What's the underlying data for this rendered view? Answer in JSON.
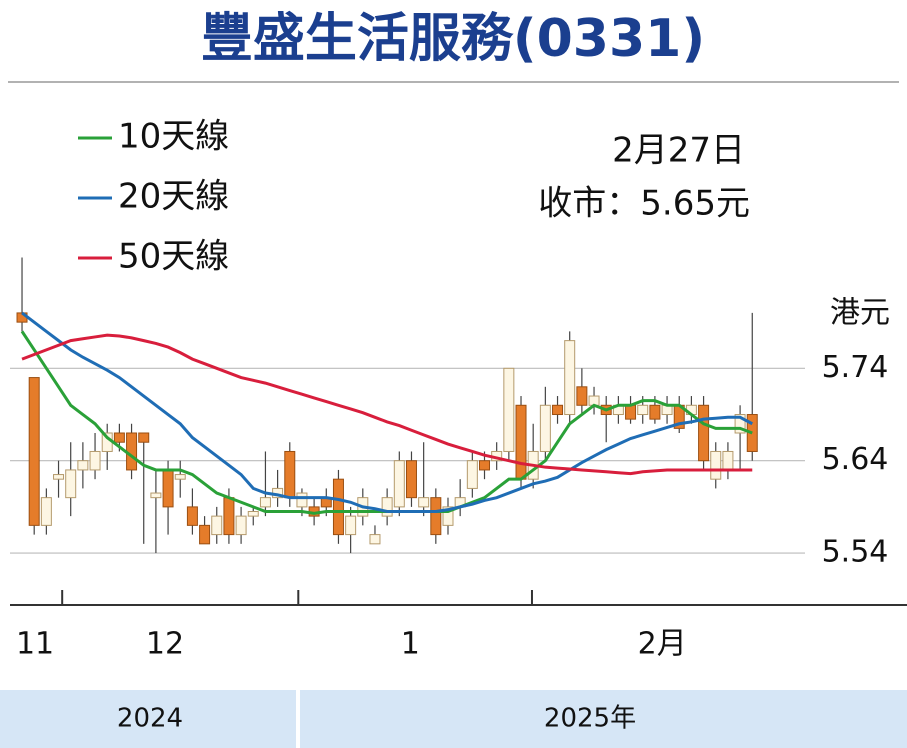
{
  "chart_data": {
    "type": "candlestick",
    "title": "豐盛生活服務(0331)",
    "annotations": [
      "2月27日",
      "收市：5.65元"
    ],
    "y_unit": "港元",
    "x": [
      0,
      1,
      2,
      3,
      4,
      5,
      6,
      7,
      8,
      9,
      10,
      11,
      12,
      13,
      14,
      15,
      16,
      17,
      18,
      19,
      20,
      21,
      22,
      23,
      24,
      25,
      26,
      27,
      28,
      29,
      30,
      31,
      32,
      33,
      34,
      35,
      36,
      37,
      38,
      39,
      40,
      41,
      42,
      43,
      44,
      45,
      46,
      47,
      48,
      49,
      50,
      51,
      52,
      53,
      54,
      55,
      56,
      57,
      58,
      59,
      60
    ],
    "open": [
      5.8,
      5.73,
      5.57,
      5.62,
      5.6,
      5.63,
      5.63,
      5.65,
      5.67,
      5.67,
      5.67,
      5.6,
      5.63,
      5.62,
      5.59,
      5.57,
      5.56,
      5.6,
      5.56,
      5.58,
      5.59,
      5.6,
      5.65,
      5.59,
      5.59,
      5.6,
      5.62,
      5.56,
      5.58,
      5.55,
      5.58,
      5.59,
      5.64,
      5.59,
      5.6,
      5.57,
      5.59,
      5.61,
      5.64,
      5.64,
      5.65,
      5.7,
      5.62,
      5.65,
      5.7,
      5.69,
      5.72,
      5.7,
      5.7,
      5.69,
      5.7,
      5.69,
      5.7,
      5.69,
      5.7,
      5.69,
      5.7,
      5.62,
      5.63,
      5.67,
      5.69
    ],
    "high": [
      5.86,
      5.73,
      5.61,
      5.64,
      5.66,
      5.66,
      5.67,
      5.68,
      5.68,
      5.68,
      5.67,
      5.63,
      5.64,
      5.64,
      5.61,
      5.58,
      5.59,
      5.61,
      5.59,
      5.59,
      5.65,
      5.63,
      5.66,
      5.61,
      5.6,
      5.61,
      5.63,
      5.59,
      5.61,
      5.57,
      5.61,
      5.65,
      5.65,
      5.66,
      5.61,
      5.6,
      5.62,
      5.65,
      5.65,
      5.66,
      5.74,
      5.71,
      5.68,
      5.72,
      5.71,
      5.78,
      5.74,
      5.72,
      5.71,
      5.71,
      5.71,
      5.71,
      5.71,
      5.71,
      5.71,
      5.71,
      5.71,
      5.66,
      5.66,
      5.7,
      5.8
    ],
    "low": [
      5.78,
      5.56,
      5.56,
      5.6,
      5.58,
      5.61,
      5.62,
      5.63,
      5.65,
      5.62,
      5.55,
      5.54,
      5.56,
      5.6,
      5.56,
      5.55,
      5.55,
      5.55,
      5.55,
      5.57,
      5.58,
      5.59,
      5.59,
      5.58,
      5.57,
      5.58,
      5.55,
      5.54,
      5.57,
      5.55,
      5.57,
      5.58,
      5.59,
      5.58,
      5.55,
      5.56,
      5.58,
      5.6,
      5.62,
      5.63,
      5.64,
      5.61,
      5.61,
      5.64,
      5.68,
      5.68,
      5.69,
      5.69,
      5.66,
      5.68,
      5.68,
      5.68,
      5.68,
      5.68,
      5.67,
      5.68,
      5.63,
      5.61,
      5.62,
      5.63,
      5.64
    ],
    "close": [
      5.79,
      5.57,
      5.6,
      5.625,
      5.63,
      5.64,
      5.65,
      5.67,
      5.66,
      5.63,
      5.66,
      5.605,
      5.59,
      5.625,
      5.57,
      5.55,
      5.58,
      5.56,
      5.58,
      5.585,
      5.6,
      5.61,
      5.6,
      5.605,
      5.58,
      5.59,
      5.56,
      5.58,
      5.6,
      5.56,
      5.6,
      5.64,
      5.6,
      5.6,
      5.56,
      5.59,
      5.6,
      5.64,
      5.63,
      5.65,
      5.74,
      5.62,
      5.65,
      5.7,
      5.69,
      5.77,
      5.7,
      5.71,
      5.69,
      5.7,
      5.685,
      5.7,
      5.685,
      5.7,
      5.675,
      5.7,
      5.64,
      5.65,
      5.65,
      5.69,
      5.65
    ],
    "up_color": "#fdf6e3",
    "up_edge": "#b49a6c",
    "down_color": "#e57c2a",
    "down_edge": "#9a4f12",
    "series": [
      {
        "name": "10天線",
        "color": "#2aa138",
        "values": [
          5.78,
          5.76,
          5.74,
          5.72,
          5.7,
          5.69,
          5.68,
          5.665,
          5.655,
          5.645,
          5.635,
          5.63,
          5.63,
          5.63,
          5.625,
          5.615,
          5.605,
          5.6,
          5.595,
          5.59,
          5.585,
          5.585,
          5.585,
          5.585,
          5.583,
          5.585,
          5.585,
          5.585,
          5.585,
          5.585,
          5.585,
          5.585,
          5.585,
          5.585,
          5.585,
          5.585,
          5.59,
          5.595,
          5.6,
          5.61,
          5.62,
          5.62,
          5.63,
          5.64,
          5.66,
          5.68,
          5.69,
          5.7,
          5.695,
          5.7,
          5.7,
          5.705,
          5.705,
          5.7,
          5.7,
          5.69,
          5.68,
          5.675,
          5.675,
          5.675,
          5.67
        ]
      },
      {
        "name": "20天線",
        "color": "#1f6db5",
        "values": [
          5.8,
          5.79,
          5.78,
          5.77,
          5.76,
          5.752,
          5.745,
          5.738,
          5.73,
          5.72,
          5.71,
          5.7,
          5.69,
          5.68,
          5.665,
          5.655,
          5.645,
          5.635,
          5.625,
          5.61,
          5.605,
          5.603,
          5.6,
          5.6,
          5.6,
          5.6,
          5.598,
          5.595,
          5.59,
          5.588,
          5.585,
          5.585,
          5.585,
          5.585,
          5.585,
          5.587,
          5.59,
          5.593,
          5.597,
          5.6,
          5.605,
          5.61,
          5.615,
          5.618,
          5.622,
          5.63,
          5.638,
          5.645,
          5.652,
          5.658,
          5.664,
          5.668,
          5.672,
          5.676,
          5.68,
          5.682,
          5.685,
          5.686,
          5.687,
          5.687,
          5.68
        ]
      },
      {
        "name": "50天線",
        "color": "#d81e3c",
        "values": [
          5.75,
          5.755,
          5.76,
          5.765,
          5.77,
          5.772,
          5.774,
          5.776,
          5.775,
          5.773,
          5.77,
          5.767,
          5.763,
          5.757,
          5.75,
          5.745,
          5.74,
          5.735,
          5.73,
          5.727,
          5.724,
          5.72,
          5.716,
          5.712,
          5.708,
          5.704,
          5.7,
          5.696,
          5.692,
          5.687,
          5.682,
          5.678,
          5.673,
          5.668,
          5.663,
          5.658,
          5.654,
          5.65,
          5.646,
          5.643,
          5.64,
          5.637,
          5.635,
          5.633,
          5.632,
          5.631,
          5.63,
          5.629,
          5.628,
          5.627,
          5.626,
          5.628,
          5.629,
          5.63,
          5.63,
          5.63,
          5.63,
          5.63,
          5.63,
          5.63,
          5.63
        ]
      }
    ],
    "xlim": [
      -1.07,
      72.55
    ],
    "ylim": [
      5.48,
      5.87
    ],
    "yticks": [
      5.54,
      5.64,
      5.74
    ],
    "xticks": [
      {
        "value": 1.07,
        "label": "11"
      },
      {
        "value": 11.75,
        "label": "12"
      },
      {
        "value": 31.9,
        "label": "1"
      },
      {
        "value": 52.6,
        "label": "2月"
      }
    ],
    "month_dividers": [
      3.3,
      22.7,
      41.9
    ],
    "grid": true,
    "year_band": [
      "2024",
      "2025年"
    ]
  }
}
